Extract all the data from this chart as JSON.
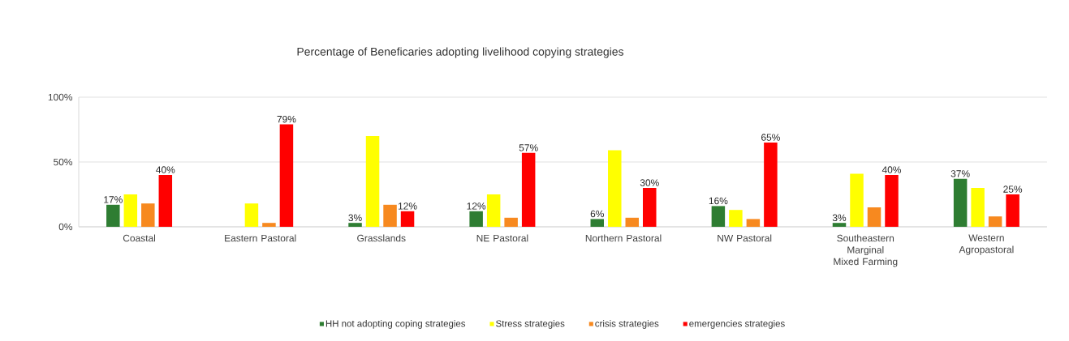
{
  "chart_data": {
    "type": "bar",
    "title": "Percentage of Beneficaries adopting livelihood copying strategies",
    "categories": [
      "Coastal",
      "Eastern Pastoral",
      "Grasslands",
      "NE Pastoral",
      "Northern Pastoral",
      "NW Pastoral",
      "Southeastern Marginal Mixed Farming",
      "Western Agropastoral"
    ],
    "series": [
      {
        "name": "HH not adopting coping strategies",
        "color": "#2e7d32",
        "values": [
          17,
          null,
          3,
          12,
          6,
          16,
          3,
          37
        ],
        "value_labels": [
          "17%",
          null,
          "3%",
          "12%",
          "6%",
          "16%",
          "3%",
          "37%"
        ]
      },
      {
        "name": "Stress  strategies",
        "color": "#ffff00",
        "values": [
          25,
          18,
          70,
          25,
          59,
          13,
          41,
          30
        ]
      },
      {
        "name": "crisis strategies",
        "color": "#f7891f",
        "values": [
          18,
          3,
          17,
          7,
          7,
          6,
          15,
          8
        ]
      },
      {
        "name": "emergencies strategies",
        "color": "#ff0000",
        "values": [
          40,
          79,
          12,
          57,
          30,
          65,
          40,
          25
        ],
        "value_labels": [
          "40%",
          "79%",
          "12%",
          "57%",
          "30%",
          "65%",
          "40%",
          "25%"
        ]
      }
    ],
    "ylim": [
      0,
      100
    ],
    "yticks": [
      {
        "value": 0,
        "label": "0%"
      },
      {
        "value": 50,
        "label": "50%"
      },
      {
        "value": 100,
        "label": "100%"
      }
    ],
    "grid": "y",
    "legend": "bottom"
  }
}
